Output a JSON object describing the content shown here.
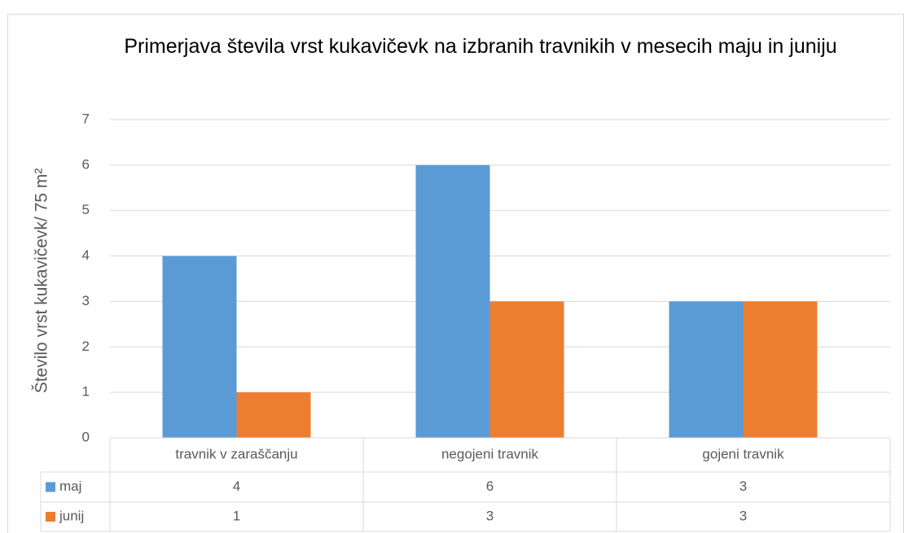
{
  "chart_data": {
    "type": "bar",
    "title": "Primerjava števila vrst kukavičevk na izbranih travnikih v mesecih maju in juniju",
    "y_label": "Število vrst kukavičevk/ 75 m²",
    "categories": [
      "travnik v zaraščanju",
      "negojeni travnik",
      "gojeni travnik"
    ],
    "series": [
      {
        "name": "maj",
        "color": "#5b9bd5",
        "values": [
          4,
          6,
          3
        ]
      },
      {
        "name": "junij",
        "color": "#ed7d31",
        "values": [
          1,
          3,
          3
        ]
      }
    ],
    "ylim": [
      0,
      7
    ],
    "yticks": [
      0,
      1,
      2,
      3,
      4,
      5,
      6,
      7
    ],
    "grid": true,
    "data_table": true
  }
}
